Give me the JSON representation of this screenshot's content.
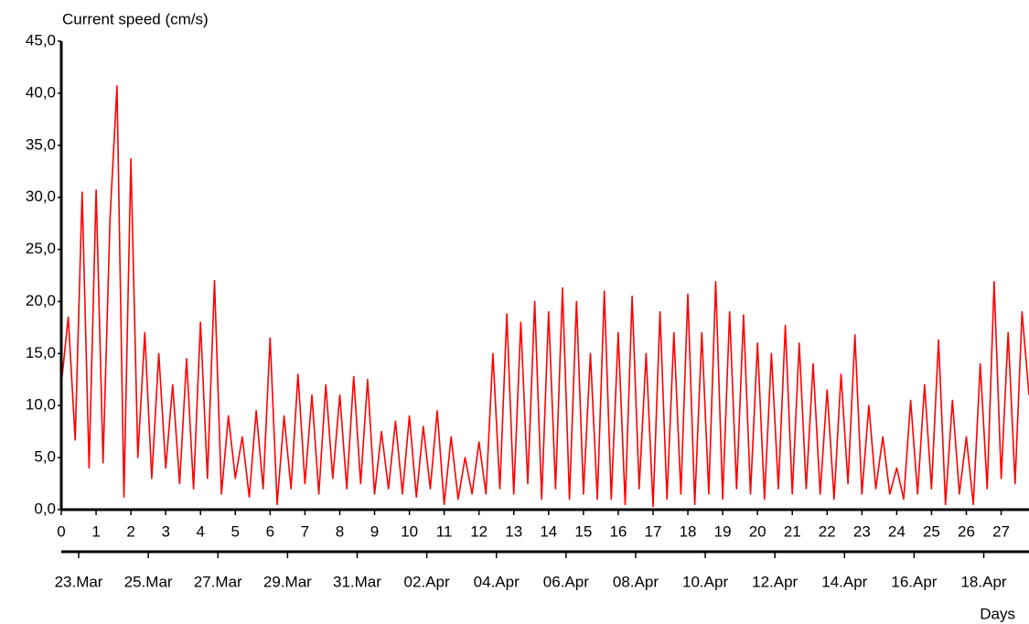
{
  "chart_data": {
    "type": "line",
    "y_label": "Current speed (cm/s)",
    "x_label": "Days",
    "xlim": [
      0,
      27.8
    ],
    "xticks": [
      0,
      1,
      2,
      3,
      4,
      5,
      6,
      7,
      8,
      9,
      10,
      11,
      12,
      13,
      14,
      15,
      16,
      17,
      18,
      19,
      20,
      21,
      22,
      23,
      24,
      25,
      26,
      27
    ],
    "x2lim": [
      0,
      27.8
    ],
    "x2ticks": [
      {
        "value": 0.5,
        "label": "23.Mar"
      },
      {
        "value": 2.5,
        "label": "25.Mar"
      },
      {
        "value": 4.5,
        "label": "27.Mar"
      },
      {
        "value": 6.5,
        "label": "29.Mar"
      },
      {
        "value": 8.5,
        "label": "31.Mar"
      },
      {
        "value": 10.5,
        "label": "02.Apr"
      },
      {
        "value": 12.5,
        "label": "04.Apr"
      },
      {
        "value": 14.5,
        "label": "06.Apr"
      },
      {
        "value": 16.5,
        "label": "08.Apr"
      },
      {
        "value": 18.5,
        "label": "10.Apr"
      },
      {
        "value": 20.5,
        "label": "12.Apr"
      },
      {
        "value": 22.5,
        "label": "14.Apr"
      },
      {
        "value": 24.5,
        "label": "16.Apr"
      },
      {
        "value": 26.5,
        "label": "18.Apr"
      }
    ],
    "ylim": [
      0,
      45
    ],
    "yticks": [
      {
        "value": 0,
        "label": "0,0"
      },
      {
        "value": 5,
        "label": "5,0"
      },
      {
        "value": 10,
        "label": "10,0"
      },
      {
        "value": 15,
        "label": "15,0"
      },
      {
        "value": 20,
        "label": "20,0"
      },
      {
        "value": 25,
        "label": "25,0"
      },
      {
        "value": 30,
        "label": "30,0"
      },
      {
        "value": 35,
        "label": "35,0"
      },
      {
        "value": 40,
        "label": "40,0"
      },
      {
        "value": 45,
        "label": "45,0"
      }
    ],
    "grid": false,
    "x": [
      0,
      0.2,
      0.4,
      0.6,
      0.8,
      1,
      1.2,
      1.4,
      1.6,
      1.8,
      2,
      2.2,
      2.4,
      2.6,
      2.8,
      3,
      3.2,
      3.4,
      3.6,
      3.8,
      4,
      4.2,
      4.4,
      4.6,
      4.8,
      5,
      5.2,
      5.4,
      5.6,
      5.8,
      6,
      6.2,
      6.4,
      6.6,
      6.8,
      7,
      7.2,
      7.4,
      7.6,
      7.8,
      8,
      8.2,
      8.4,
      8.6,
      8.8,
      9,
      9.2,
      9.4,
      9.6,
      9.8,
      10,
      10.2,
      10.4,
      10.6,
      10.8,
      11,
      11.2,
      11.4,
      11.6,
      11.8,
      12,
      12.2,
      12.4,
      12.6,
      12.8,
      13,
      13.2,
      13.4,
      13.6,
      13.8,
      14,
      14.2,
      14.4,
      14.6,
      14.8,
      15,
      15.2,
      15.4,
      15.6,
      15.8,
      16,
      16.2,
      16.4,
      16.6,
      16.8,
      17,
      17.2,
      17.4,
      17.6,
      17.8,
      18,
      18.2,
      18.4,
      18.6,
      18.8,
      19,
      19.2,
      19.4,
      19.6,
      19.8,
      20,
      20.2,
      20.4,
      20.6,
      20.8,
      21,
      21.2,
      21.4,
      21.6,
      21.8,
      22,
      22.2,
      22.4,
      22.6,
      22.8,
      23,
      23.2,
      23.4,
      23.6,
      23.8,
      24,
      24.2,
      24.4,
      24.6,
      24.8,
      25,
      25.2,
      25.4,
      25.6,
      25.8,
      26,
      26.2,
      26.4,
      26.6,
      26.8,
      27,
      27.2,
      27.4,
      27.6,
      27.8
    ],
    "series": [
      {
        "color": "#ff0000",
        "values": [
          12,
          18.5,
          6.7,
          30.5,
          4,
          30.7,
          4.5,
          28,
          40.7,
          1.2,
          33.7,
          5,
          17,
          3,
          15,
          4,
          12,
          2.5,
          14.5,
          2,
          18,
          3,
          22,
          1.5,
          9,
          3,
          7,
          1.2,
          9.5,
          2,
          16.5,
          0.5,
          9,
          2,
          13,
          2.5,
          11,
          1.5,
          12,
          3,
          11,
          2,
          12.8,
          2.5,
          12.5,
          1.5,
          7.5,
          2,
          8.5,
          1.5,
          9,
          1.2,
          8,
          2,
          9.5,
          0.5,
          7,
          1,
          5,
          1.5,
          6.5,
          1.5,
          15,
          2,
          18.8,
          1.5,
          18,
          2.5,
          20,
          1,
          19,
          2,
          21.3,
          1,
          20,
          1.5,
          15,
          1,
          21,
          1,
          17,
          0.5,
          20.5,
          2,
          15,
          0.3,
          19,
          1,
          17,
          1.5,
          20.7,
          0.5,
          17,
          1.5,
          21.9,
          1,
          19,
          2,
          18.7,
          1.5,
          16,
          1,
          15,
          2,
          17.7,
          1.5,
          16,
          2,
          14,
          1.5,
          11.5,
          1,
          13,
          2.5,
          16.8,
          1.5,
          10,
          2,
          7,
          1.5,
          4,
          1,
          10.5,
          1.5,
          12,
          2,
          16.3,
          0.5,
          10.5,
          1.5,
          7,
          0.5,
          14,
          2,
          21.9,
          3,
          17,
          2.5,
          19,
          11
        ]
      }
    ]
  }
}
